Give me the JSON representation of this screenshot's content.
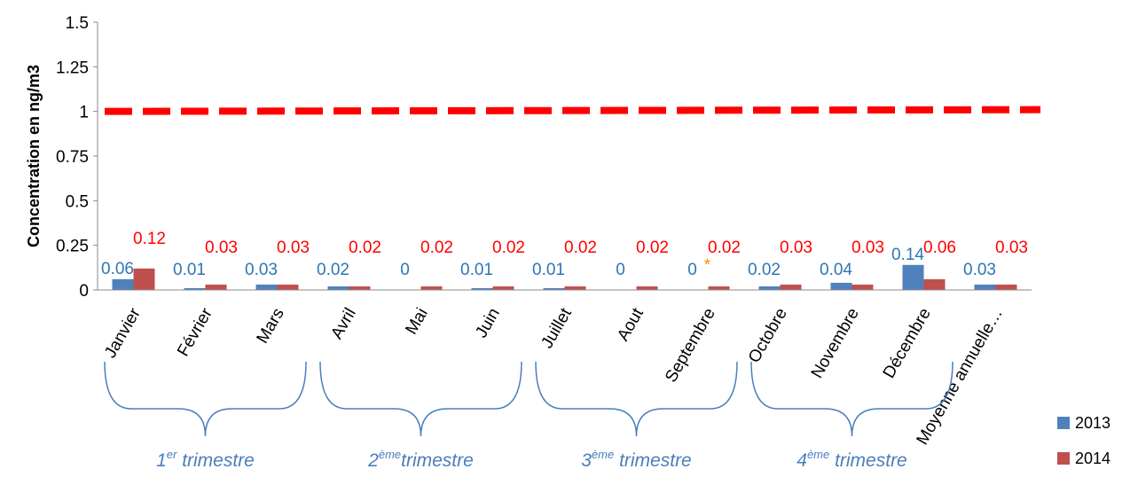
{
  "chart_data": {
    "type": "bar",
    "ylabel": "Concentration en ng/m3",
    "ylim": [
      0,
      1.5
    ],
    "yticks": [
      "0",
      "0.25",
      "0.5",
      "0.75",
      "1",
      "1.25",
      "1.5"
    ],
    "grid": false,
    "legend_position": "bottom-right",
    "categories": [
      "Janvier",
      "Février",
      "Mars",
      "Avril",
      "Mai",
      "Juin",
      "Juillet",
      "Aout",
      "Septembre",
      "Octobre",
      "Novembre",
      "Décembre",
      "Moyenne annuelle…"
    ],
    "series": [
      {
        "name": "2013",
        "color": "#4f81bd",
        "label_color": "#2e75b6",
        "values": [
          0.06,
          0.01,
          0.03,
          0.02,
          0,
          0.01,
          0.01,
          0,
          0,
          0.02,
          0.04,
          0.14,
          0.03
        ],
        "labels": [
          "0.06",
          "0.01",
          "0.03",
          "0.02",
          "0",
          "0.01",
          "0.01",
          "0",
          "0",
          "0.02",
          "0.04",
          "0.14",
          "0.03"
        ]
      },
      {
        "name": "2014",
        "color": "#c0504d",
        "label_color": "#ff0000",
        "values": [
          0.12,
          0.03,
          0.03,
          0.02,
          0.02,
          0.02,
          0.02,
          0.02,
          0.02,
          0.03,
          0.03,
          0.06,
          0.03
        ],
        "labels": [
          "0.12",
          "0.03",
          "0.03",
          "0.02",
          "0.02",
          "0.02",
          "0.02",
          "0.02",
          "0.02",
          "0.03",
          "0.03",
          "0.06",
          "0.03"
        ]
      }
    ],
    "reference_line": {
      "value": 1,
      "color": "#ff0000",
      "style": "dashed"
    },
    "annotation": {
      "text": "*",
      "category": "Septembre",
      "color": "#ff8c00"
    },
    "groups": [
      {
        "prefix": "1",
        "sup": "er",
        "suffix": " trimestre",
        "span": [
          0,
          2
        ]
      },
      {
        "prefix": "2",
        "sup": "ème",
        "suffix": "trimestre",
        "span": [
          3,
          5
        ]
      },
      {
        "prefix": "3",
        "sup": "ème",
        "suffix": " trimestre",
        "span": [
          6,
          8
        ]
      },
      {
        "prefix": "4",
        "sup": "ème",
        "suffix": " trimestre",
        "span": [
          9,
          11
        ]
      }
    ],
    "group_color": "#4a7ebb"
  }
}
